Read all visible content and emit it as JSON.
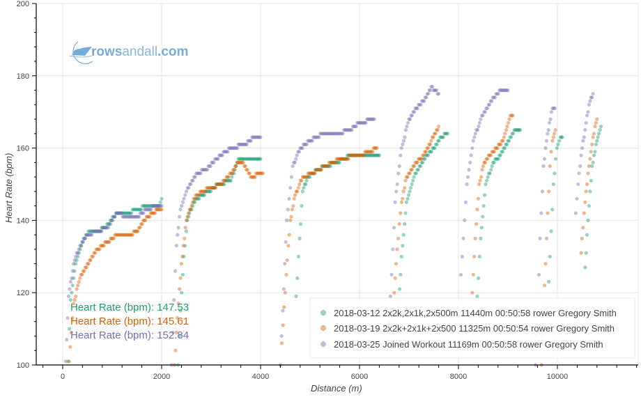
{
  "watermark": {
    "brand_bold": "rows",
    "brand_light": "andall",
    "brand_suffix": ".com",
    "color": "#6fa8d6"
  },
  "summary_labels": [
    {
      "text": "Heart Rate (bpm): 147.53",
      "color": "#1b9e77"
    },
    {
      "text": "Heart Rate (bpm): 145.61",
      "color": "#d95f02"
    },
    {
      "text": "Heart Rate (bpm): 152.84",
      "color": "#7570b3"
    }
  ],
  "chart_data": {
    "type": "scatter",
    "title": "",
    "xlabel": "Distance (m)",
    "ylabel": "Heart Rate (bpm)",
    "xlim": [
      -500,
      11600
    ],
    "ylim": [
      100,
      200
    ],
    "xticks": [
      0,
      2000,
      4000,
      6000,
      8000,
      10000
    ],
    "yticks": [
      100,
      120,
      140,
      160,
      180,
      200
    ],
    "grid": true,
    "legend_position": "bottom-right",
    "series": [
      {
        "name": "2018-03-12 2x2k,2x1k,2x500m 11440m 00:50:58 rower Gregory Smith",
        "color": "#1b9e77",
        "mean_hr": 147.53,
        "intervals": [
          [
            [
              110,
              101
            ],
            [
              160,
              118
            ],
            [
              260,
              128
            ],
            [
              400,
              134
            ],
            [
              520,
              137
            ],
            [
              700,
              137
            ],
            [
              850,
              138
            ],
            [
              1100,
              142
            ],
            [
              1300,
              142
            ],
            [
              1500,
              143
            ],
            [
              1700,
              144
            ],
            [
              1950,
              144
            ],
            [
              2000,
              146
            ]
          ],
          [
            [
              2330,
              100
            ],
            [
              2380,
              115
            ],
            [
              2450,
              130
            ],
            [
              2520,
              140
            ],
            [
              2650,
              145
            ],
            [
              2800,
              147
            ],
            [
              2950,
              148
            ],
            [
              3150,
              150
            ],
            [
              3400,
              151
            ],
            [
              3500,
              155
            ],
            [
              3550,
              157
            ],
            [
              3750,
              157
            ],
            [
              3900,
              157
            ],
            [
              4000,
              157
            ]
          ],
          [
            [
              4720,
              119
            ],
            [
              4790,
              135
            ],
            [
              4850,
              148
            ],
            [
              4950,
              152
            ],
            [
              5150,
              154
            ],
            [
              5300,
              155
            ],
            [
              5550,
              156
            ],
            [
              5800,
              158
            ],
            [
              6000,
              158
            ],
            [
              6300,
              158
            ],
            [
              6400,
              158
            ]
          ],
          [
            [
              6790,
              116
            ],
            [
              6850,
              130
            ],
            [
              6950,
              145
            ],
            [
              7100,
              152
            ],
            [
              7300,
              157
            ],
            [
              7500,
              160
            ],
            [
              7650,
              163
            ],
            [
              7780,
              164
            ]
          ],
          [
            [
              8380,
              119
            ],
            [
              8450,
              135
            ],
            [
              8550,
              150
            ],
            [
              8700,
              156
            ],
            [
              8850,
              158
            ],
            [
              9000,
              162
            ],
            [
              9150,
              165
            ],
            [
              9250,
              165
            ]
          ],
          [
            [
              9800,
              116
            ],
            [
              9850,
              130
            ],
            [
              9920,
              150
            ],
            [
              9990,
              160
            ],
            [
              10060,
              163
            ],
            [
              10100,
              163
            ]
          ],
          [
            [
              10560,
              127
            ],
            [
              10620,
              140
            ],
            [
              10700,
              155
            ],
            [
              10800,
              162
            ],
            [
              10880,
              166
            ]
          ]
        ]
      },
      {
        "name": "2018-03-19 2x2k+2x1k+2x500 11325m 00:50:54 rower Gregory Smith",
        "color": "#d95f02",
        "mean_hr": 145.61,
        "intervals": [
          [
            [
              130,
              101
            ],
            [
              220,
              117
            ],
            [
              350,
              124
            ],
            [
              500,
              128
            ],
            [
              700,
              132
            ],
            [
              900,
              134
            ],
            [
              1100,
              136
            ],
            [
              1350,
              136
            ],
            [
              1500,
              137
            ],
            [
              1650,
              140
            ],
            [
              1800,
              142
            ],
            [
              1950,
              143
            ],
            [
              2000,
              143
            ]
          ],
          [
            [
              2260,
              100
            ],
            [
              2320,
              113
            ],
            [
              2400,
              128
            ],
            [
              2500,
              140
            ],
            [
              2650,
              146
            ],
            [
              2800,
              148
            ],
            [
              3000,
              149
            ],
            [
              3200,
              150
            ],
            [
              3400,
              153
            ],
            [
              3550,
              156
            ],
            [
              3650,
              156
            ],
            [
              3800,
              152
            ],
            [
              4000,
              153
            ],
            [
              4050,
              153
            ]
          ],
          [
            [
              4430,
              106
            ],
            [
              4520,
              125
            ],
            [
              4600,
              140
            ],
            [
              4700,
              147
            ],
            [
              4850,
              152
            ],
            [
              5050,
              153
            ],
            [
              5300,
              155
            ],
            [
              5600,
              157
            ],
            [
              6000,
              158
            ],
            [
              6200,
              159
            ],
            [
              6350,
              160
            ]
          ],
          [
            [
              6700,
              120
            ],
            [
              6760,
              132
            ],
            [
              6850,
              145
            ],
            [
              6950,
              152
            ],
            [
              7150,
              156
            ],
            [
              7300,
              158
            ],
            [
              7450,
              162
            ],
            [
              7600,
              166
            ]
          ],
          [
            [
              8240,
              106
            ],
            [
              8280,
              120
            ],
            [
              8340,
              135
            ],
            [
              8420,
              150
            ],
            [
              8520,
              156
            ],
            [
              8700,
              159
            ],
            [
              8900,
              162
            ],
            [
              9050,
              169
            ],
            [
              9100,
              169
            ]
          ],
          [
            [
              9680,
              100
            ],
            [
              9720,
              115
            ],
            [
              9780,
              135
            ],
            [
              9850,
              155
            ],
            [
              9900,
              162
            ],
            [
              9960,
              165
            ]
          ],
          [
            [
              10480,
              131
            ],
            [
              10560,
              145
            ],
            [
              10640,
              155
            ],
            [
              10720,
              163
            ],
            [
              10800,
              168
            ]
          ]
        ]
      },
      {
        "name": "2018-03-25 Joined Workout 11169m 00:50:58 rower Gregory Smith",
        "color": "#7570b3",
        "mean_hr": 152.84,
        "intervals": [
          [
            [
              60,
              101
            ],
            [
              120,
              119
            ],
            [
              220,
              128
            ],
            [
              350,
              133
            ],
            [
              500,
              136
            ],
            [
              700,
              137
            ],
            [
              900,
              138
            ],
            [
              1100,
              142
            ],
            [
              1300,
              141
            ],
            [
              1500,
              141
            ],
            [
              1700,
              143
            ],
            [
              1900,
              144
            ],
            [
              2000,
              144
            ]
          ],
          [
            [
              2200,
              100
            ],
            [
              2250,
              118
            ],
            [
              2300,
              133
            ],
            [
              2380,
              143
            ],
            [
              2500,
              148
            ],
            [
              2700,
              153
            ],
            [
              2900,
              154
            ],
            [
              3100,
              157
            ],
            [
              3400,
              160
            ],
            [
              3700,
              161
            ],
            [
              3850,
              163
            ],
            [
              4000,
              163
            ]
          ],
          [
            [
              4400,
              100
            ],
            [
              4450,
              115
            ],
            [
              4530,
              140
            ],
            [
              4650,
              155
            ],
            [
              4800,
              160
            ],
            [
              5000,
              162
            ],
            [
              5250,
              164
            ],
            [
              5550,
              164
            ],
            [
              5800,
              165
            ],
            [
              6000,
              167
            ],
            [
              6300,
              168
            ]
          ],
          [
            [
              6600,
              112
            ],
            [
              6650,
              125
            ],
            [
              6720,
              145
            ],
            [
              6850,
              160
            ],
            [
              7000,
              168
            ],
            [
              7150,
              171
            ],
            [
              7350,
              174
            ],
            [
              7450,
              177
            ],
            [
              7600,
              175
            ]
          ],
          [
            [
              8050,
              125
            ],
            [
              8100,
              135
            ],
            [
              8170,
              150
            ],
            [
              8300,
              162
            ],
            [
              8450,
              168
            ],
            [
              8650,
              173
            ],
            [
              8850,
              176
            ],
            [
              9000,
              176
            ]
          ],
          [
            [
              9560,
              100
            ],
            [
              9600,
              115
            ],
            [
              9650,
              135
            ],
            [
              9720,
              155
            ],
            [
              9800,
              164
            ],
            [
              9900,
              171
            ],
            [
              9950,
              171
            ]
          ],
          [
            [
              10370,
              142
            ],
            [
              10420,
              150
            ],
            [
              10480,
              158
            ],
            [
              10560,
              165
            ],
            [
              10640,
              172
            ],
            [
              10720,
              175
            ]
          ]
        ]
      }
    ]
  }
}
